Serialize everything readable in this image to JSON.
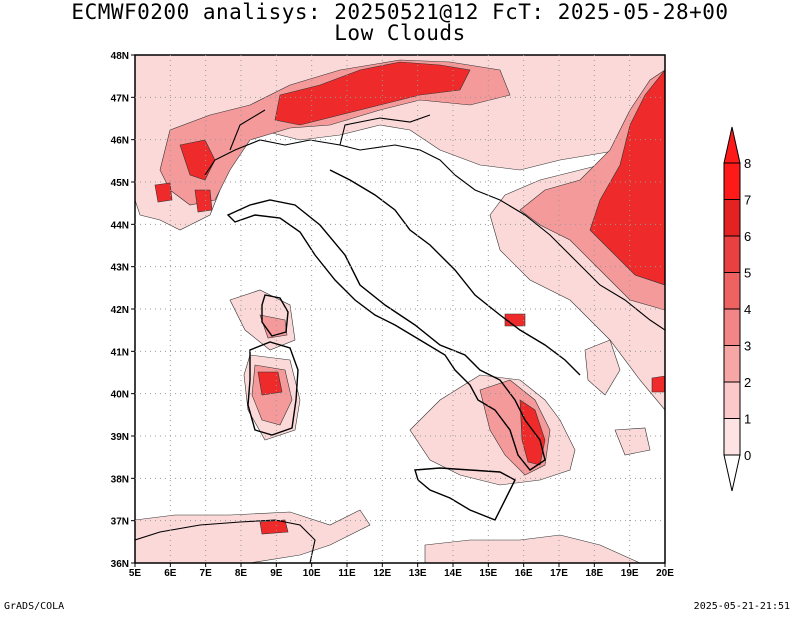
{
  "title": {
    "line1": "ECMWF0200 analisys: 20250521@12 FcT: 2025-05-28+00",
    "line2": "Low Clouds"
  },
  "footer": {
    "left": "GrADS/COLA",
    "right": "2025-05-21-21:51"
  },
  "map": {
    "lon_range": [
      5,
      20
    ],
    "lat_range": [
      36,
      48
    ],
    "lon_ticks": [
      "5E",
      "6E",
      "7E",
      "8E",
      "9E",
      "10E",
      "11E",
      "12E",
      "13E",
      "14E",
      "15E",
      "16E",
      "17E",
      "18E",
      "19E",
      "20E"
    ],
    "lat_ticks": [
      "36N",
      "37N",
      "38N",
      "39N",
      "40N",
      "41N",
      "42N",
      "43N",
      "44N",
      "45N",
      "46N",
      "47N",
      "48N"
    ],
    "grid": "dotted"
  },
  "colorbar": {
    "levels": [
      "0",
      "1",
      "2",
      "3",
      "4",
      "5",
      "6",
      "7",
      "8"
    ],
    "colors": [
      "#ffffff",
      "#fde3e3",
      "#fbc9c9",
      "#f7a6a6",
      "#f28585",
      "#ee6262",
      "#e94141",
      "#e52222",
      "#ff1a1a"
    ]
  },
  "colors": {
    "low": "#fbd9d9",
    "mid": "#f49a9a",
    "high": "#ee2a2a"
  }
}
